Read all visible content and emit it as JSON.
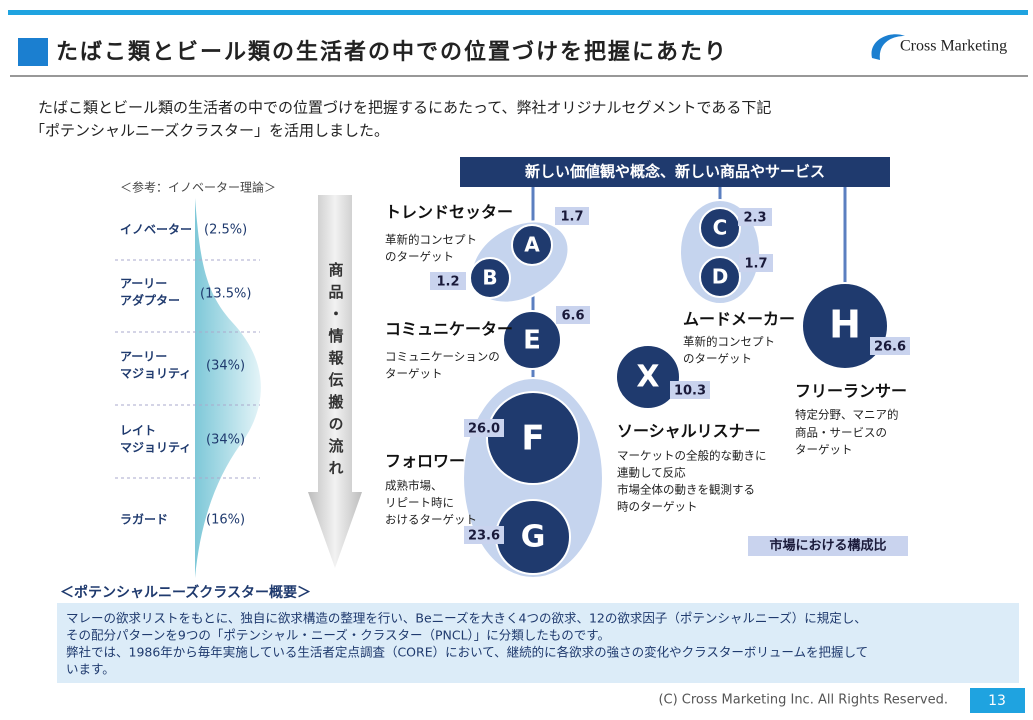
{
  "header": {
    "title": "たばこ類とビール類の生活者の中での位置づけを把握にあたり",
    "logo": "Cross Marketing"
  },
  "intro": [
    "たばこ類とビール類の生活者の中での位置づけを把握するにあたって、弊社オリジナルセグメントである下記",
    "「ポテンシャルニーズクラスター」を活用しました。"
  ],
  "innovator_theory": {
    "heading": "＜参考：イノベーター理論＞",
    "rows": [
      {
        "label": [
          "イノベーター"
        ],
        "share": "(2.5%)"
      },
      {
        "label": [
          "アーリー",
          "アダプター"
        ],
        "share": "(13.5%)"
      },
      {
        "label": [
          "アーリー",
          "マジョリティ"
        ],
        "share": "(34%)"
      },
      {
        "label": [
          "レイト",
          "マジョリティ"
        ],
        "share": "(34%)"
      },
      {
        "label": [
          "ラガード"
        ],
        "share": "(16%)"
      }
    ]
  },
  "flow_label": "商品・情報伝搬の流れ",
  "banner": "新しい価値観や概念、新しい商品やサービス",
  "clusters": [
    {
      "letter": "A",
      "share": "1.7"
    },
    {
      "letter": "B",
      "share": "1.2"
    },
    {
      "letter": "C",
      "share": "2.3"
    },
    {
      "letter": "D",
      "share": "1.7"
    },
    {
      "letter": "E",
      "share": "6.6"
    },
    {
      "letter": "F",
      "share": "26.0"
    },
    {
      "letter": "G",
      "share": "23.6"
    },
    {
      "letter": "X",
      "share": "10.3"
    },
    {
      "letter": "H",
      "share": "26.6"
    }
  ],
  "segments": [
    {
      "name": "トレンドセッター",
      "description": [
        "革新的コンセプト",
        "のターゲット"
      ]
    },
    {
      "name": "ムードメーカー",
      "description": [
        "革新的コンセプト",
        "のターゲット"
      ]
    },
    {
      "name": "コミュニケーター",
      "description": [
        "コミュニケーションの",
        "ターゲット"
      ]
    },
    {
      "name": "フォロワー",
      "description": [
        "成熟市場、",
        "リピート時に",
        "おけるターゲット"
      ]
    },
    {
      "name": "ソーシャルリスナー",
      "description": [
        "マーケットの全般的な動きに",
        "連動して反応",
        "市場全体の動きを観測する",
        "時のターゲット"
      ]
    },
    {
      "name": "フリーランサー",
      "description": [
        "特定分野、マニア的",
        "商品・サービスの",
        "ターゲット"
      ]
    }
  ],
  "legend": "市場における構成比",
  "summary": {
    "heading": "＜ポテンシャルニーズクラスター概要＞",
    "lines": [
      "マレーの欲求リストをもとに、独自に欲求構造の整理を行い、Beニーズを大きく4つの欲求、12の欲求因子（ポテンシャルニーズ）に規定し、",
      "その配分パターンを9つの「ポテンシャル・ニーズ・クラスター（PNCL）」に分類したものです。",
      "弊社では、1986年から毎年実施している生活者定点調査（CORE）において、継続的に各欲求の強さの変化やクラスターボリュームを把握して",
      "います。"
    ]
  },
  "footer": {
    "copyright": "(C)  Cross Marketing Inc. All Rights Reserved.",
    "page": "13"
  }
}
